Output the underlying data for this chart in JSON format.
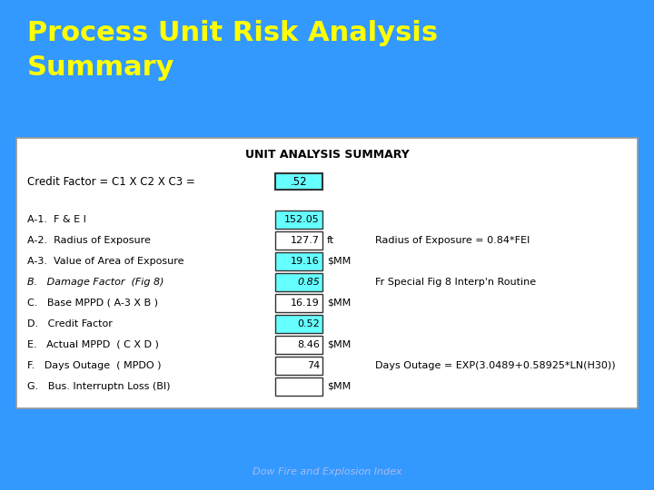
{
  "title_line1": "Process Unit Risk Analysis",
  "title_line2": "Summary",
  "title_color": "#FFFF00",
  "bg_color": "#3399FF",
  "table_title": "UNIT ANALYSIS SUMMARY",
  "footer": "Dow Fire and Explosion Index",
  "footer_color": "#AABBEE",
  "credit_label": "Credit Factor = C1 X C2 X C3 =",
  "credit_value": ".52",
  "rows": [
    {
      "label": "A-1.  F & E I",
      "value": "152.05",
      "unit": "",
      "note": "",
      "highlight": true,
      "italic": false
    },
    {
      "label": "A-2.  Radius of Exposure",
      "value": "127.7",
      "unit": "ft",
      "note": "Radius of Exposure = 0.84*FEI",
      "highlight": false,
      "italic": false
    },
    {
      "label": "A-3.  Value of Area of Exposure",
      "value": "19.16",
      "unit": "$MM",
      "note": "",
      "highlight": true,
      "italic": false
    },
    {
      "label": "B.   Damage Factor  (Fig 8)",
      "value": "0.85",
      "unit": "",
      "note": "Fr Special Fig 8 Interp'n Routine",
      "highlight": true,
      "italic": true
    },
    {
      "label": "C.   Base MPPD ( A-3 X B )",
      "value": "16.19",
      "unit": "$MM",
      "note": "",
      "highlight": false,
      "italic": false
    },
    {
      "label": "D.   Credit Factor",
      "value": "0.52",
      "unit": "",
      "note": "",
      "highlight": true,
      "italic": false
    },
    {
      "label": "E.   Actual MPPD  ( C X D )",
      "value": "8.46",
      "unit": "$MM",
      "note": "",
      "highlight": false,
      "italic": false
    },
    {
      "label": "F.   Days Outage  ( MPDO )",
      "value": "74",
      "unit": "",
      "note": "Days Outage = EXP(3.0489+0.58925*LN(H30))",
      "highlight": false,
      "italic": false
    },
    {
      "label": "G.   Bus. Interruptn Loss (BI)",
      "value": "",
      "unit": "$MM",
      "note": "",
      "highlight": false,
      "italic": false
    }
  ],
  "cell_highlight_color": "#66FFFF",
  "cell_normal_color": "#FFFFFF",
  "table_bg": "#FFFFFF",
  "title_fontsize": 22,
  "label_fontsize": 8,
  "value_fontsize": 8,
  "note_fontsize": 8,
  "table_title_fontsize": 9,
  "credit_fontsize": 8.5,
  "footer_fontsize": 8
}
